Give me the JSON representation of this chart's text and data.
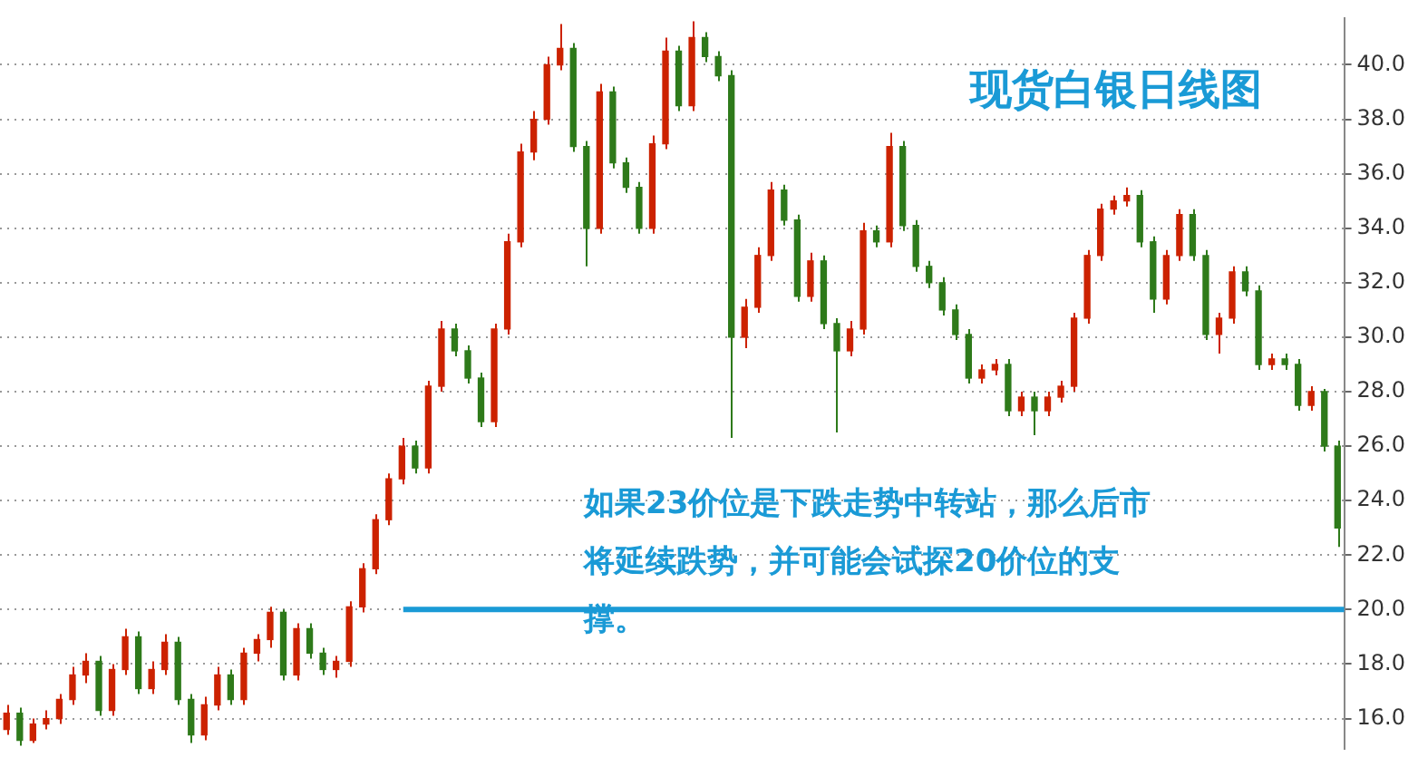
{
  "chart_data": {
    "type": "candlestick",
    "title": "现货白银日线图",
    "annotations": [
      "如果23价位是下跌走势中转站，那么后市将延续跌势，并可能会试探20价位的支撑。"
    ],
    "categories": [
      null,
      null,
      null,
      null,
      null,
      null,
      null,
      null,
      null,
      null,
      null,
      null,
      null,
      null,
      null,
      null,
      null,
      null,
      null,
      null,
      null,
      null,
      null,
      null,
      null,
      null,
      null,
      null,
      null,
      null,
      null,
      null,
      null,
      null,
      null,
      null,
      null,
      null,
      null,
      null,
      null,
      null,
      null,
      null,
      null,
      null,
      null,
      null,
      null,
      null,
      null,
      null,
      null,
      null,
      null,
      null,
      null,
      null,
      null,
      null,
      null,
      null,
      null,
      null,
      null,
      null,
      null,
      null,
      null,
      null,
      null,
      null,
      null,
      null,
      null,
      null,
      null,
      null,
      null,
      null,
      null,
      null,
      null,
      null,
      null,
      null,
      null,
      null,
      null,
      null,
      null,
      null,
      null,
      null,
      null,
      null,
      null,
      null,
      null,
      null,
      null,
      null
    ],
    "ohlc": [
      [
        15.6,
        16.5,
        15.4,
        16.2
      ],
      [
        16.2,
        16.4,
        15.0,
        15.2
      ],
      [
        15.2,
        16.0,
        15.1,
        15.8
      ],
      [
        15.8,
        16.3,
        15.6,
        16.0
      ],
      [
        16.0,
        16.9,
        15.8,
        16.7
      ],
      [
        16.7,
        17.9,
        16.5,
        17.6
      ],
      [
        17.6,
        18.4,
        17.3,
        18.1
      ],
      [
        18.1,
        18.3,
        16.1,
        16.3
      ],
      [
        16.3,
        18.0,
        16.1,
        17.8
      ],
      [
        17.8,
        19.3,
        17.6,
        19.0
      ],
      [
        19.0,
        19.2,
        16.9,
        17.1
      ],
      [
        17.1,
        18.1,
        16.9,
        17.8
      ],
      [
        17.8,
        19.1,
        17.6,
        18.8
      ],
      [
        18.8,
        19.0,
        16.5,
        16.7
      ],
      [
        16.7,
        16.9,
        15.1,
        15.4
      ],
      [
        15.4,
        16.8,
        15.2,
        16.5
      ],
      [
        16.5,
        17.9,
        16.3,
        17.6
      ],
      [
        17.6,
        17.8,
        16.5,
        16.7
      ],
      [
        16.7,
        18.6,
        16.5,
        18.4
      ],
      [
        18.4,
        19.1,
        18.1,
        18.9
      ],
      [
        18.9,
        20.1,
        18.6,
        19.9
      ],
      [
        19.9,
        20.0,
        17.4,
        17.6
      ],
      [
        17.6,
        19.5,
        17.4,
        19.3
      ],
      [
        19.3,
        19.5,
        18.2,
        18.4
      ],
      [
        18.4,
        18.6,
        17.6,
        17.8
      ],
      [
        17.8,
        18.3,
        17.5,
        18.1
      ],
      [
        18.1,
        20.3,
        17.9,
        20.1
      ],
      [
        20.1,
        21.7,
        19.9,
        21.5
      ],
      [
        21.5,
        23.5,
        21.3,
        23.3
      ],
      [
        23.3,
        25.0,
        23.1,
        24.8
      ],
      [
        24.8,
        26.3,
        24.6,
        26.0
      ],
      [
        26.0,
        26.2,
        25.0,
        25.2
      ],
      [
        25.2,
        28.4,
        25.0,
        28.2
      ],
      [
        28.2,
        30.6,
        28.0,
        30.3
      ],
      [
        30.3,
        30.5,
        29.3,
        29.5
      ],
      [
        29.5,
        29.7,
        28.3,
        28.5
      ],
      [
        28.5,
        28.7,
        26.7,
        26.9
      ],
      [
        26.9,
        30.5,
        26.7,
        30.3
      ],
      [
        30.3,
        33.8,
        30.1,
        33.5
      ],
      [
        33.5,
        37.1,
        33.3,
        36.8
      ],
      [
        36.8,
        38.3,
        36.5,
        38.0
      ],
      [
        38.0,
        40.3,
        37.8,
        40.0
      ],
      [
        40.0,
        41.5,
        39.8,
        40.6
      ],
      [
        40.6,
        40.8,
        36.8,
        37.0
      ],
      [
        37.0,
        37.2,
        32.6,
        34.0
      ],
      [
        34.0,
        39.3,
        33.8,
        39.0
      ],
      [
        39.0,
        39.2,
        36.2,
        36.4
      ],
      [
        36.4,
        36.6,
        35.3,
        35.5
      ],
      [
        35.5,
        35.7,
        33.8,
        34.0
      ],
      [
        34.0,
        37.4,
        33.8,
        37.1
      ],
      [
        37.1,
        41.0,
        36.9,
        40.5
      ],
      [
        40.5,
        40.7,
        38.3,
        38.5
      ],
      [
        38.5,
        41.6,
        38.3,
        41.0
      ],
      [
        41.0,
        41.2,
        40.1,
        40.3
      ],
      [
        40.3,
        40.5,
        39.4,
        39.6
      ],
      [
        39.6,
        39.8,
        26.3,
        30.0
      ],
      [
        30.0,
        31.4,
        29.6,
        31.1
      ],
      [
        31.1,
        33.3,
        30.9,
        33.0
      ],
      [
        33.0,
        35.7,
        32.8,
        35.4
      ],
      [
        35.4,
        35.6,
        34.1,
        34.3
      ],
      [
        34.3,
        34.5,
        31.3,
        31.5
      ],
      [
        31.5,
        33.1,
        31.3,
        32.8
      ],
      [
        32.8,
        33.0,
        30.3,
        30.5
      ],
      [
        30.5,
        30.7,
        26.5,
        29.5
      ],
      [
        29.5,
        30.6,
        29.3,
        30.3
      ],
      [
        30.3,
        34.2,
        30.1,
        33.9
      ],
      [
        33.9,
        34.1,
        33.3,
        33.5
      ],
      [
        33.5,
        37.5,
        33.3,
        37.0
      ],
      [
        37.0,
        37.2,
        33.9,
        34.1
      ],
      [
        34.1,
        34.3,
        32.4,
        32.6
      ],
      [
        32.6,
        32.8,
        31.8,
        32.0
      ],
      [
        32.0,
        32.2,
        30.8,
        31.0
      ],
      [
        31.0,
        31.2,
        29.9,
        30.1
      ],
      [
        30.1,
        30.3,
        28.3,
        28.5
      ],
      [
        28.5,
        29.0,
        28.3,
        28.8
      ],
      [
        28.8,
        29.2,
        28.6,
        29.0
      ],
      [
        29.0,
        29.2,
        27.1,
        27.3
      ],
      [
        27.3,
        28.0,
        27.1,
        27.8
      ],
      [
        27.8,
        28.0,
        26.4,
        27.3
      ],
      [
        27.3,
        28.0,
        27.1,
        27.8
      ],
      [
        27.8,
        28.4,
        27.6,
        28.2
      ],
      [
        28.2,
        30.9,
        28.0,
        30.7
      ],
      [
        30.7,
        33.2,
        30.5,
        33.0
      ],
      [
        33.0,
        34.9,
        32.8,
        34.7
      ],
      [
        34.7,
        35.2,
        34.5,
        35.0
      ],
      [
        35.0,
        35.5,
        34.8,
        35.2
      ],
      [
        35.2,
        35.4,
        33.3,
        33.5
      ],
      [
        33.5,
        33.7,
        30.9,
        31.4
      ],
      [
        31.4,
        33.2,
        31.2,
        33.0
      ],
      [
        33.0,
        34.7,
        32.8,
        34.5
      ],
      [
        34.5,
        34.7,
        32.8,
        33.0
      ],
      [
        33.0,
        33.2,
        29.9,
        30.1
      ],
      [
        30.1,
        30.9,
        29.4,
        30.7
      ],
      [
        30.7,
        32.6,
        30.5,
        32.4
      ],
      [
        32.4,
        32.6,
        31.5,
        31.7
      ],
      [
        31.7,
        31.9,
        28.8,
        29.0
      ],
      [
        29.0,
        29.4,
        28.8,
        29.2
      ],
      [
        29.2,
        29.4,
        28.8,
        29.0
      ],
      [
        29.0,
        29.2,
        27.3,
        27.5
      ],
      [
        27.5,
        28.2,
        27.3,
        28.0
      ],
      [
        28.0,
        28.1,
        25.8,
        26.0
      ],
      [
        26.0,
        26.2,
        22.3,
        23.0
      ]
    ],
    "ylim": [
      14.9,
      41.7
    ],
    "yticks": [
      {
        "value": 16,
        "label": "16.0"
      },
      {
        "value": 18,
        "label": "18.0"
      },
      {
        "value": 20,
        "label": "20.0"
      },
      {
        "value": 22,
        "label": "22.0"
      },
      {
        "value": 24,
        "label": "24.0"
      },
      {
        "value": 26,
        "label": "26.0"
      },
      {
        "value": 28,
        "label": "28.0"
      },
      {
        "value": 30,
        "label": "30.0"
      },
      {
        "value": 32,
        "label": "32.0"
      },
      {
        "value": 34,
        "label": "34.0"
      },
      {
        "value": 36,
        "label": "36.0"
      },
      {
        "value": 38,
        "label": "38.0"
      },
      {
        "value": 40,
        "label": "40.0"
      }
    ],
    "grid": "y",
    "legend": false,
    "tick_labels": "y",
    "ref_lines": [
      {
        "axis": "y",
        "value": 20,
        "color": "#1a9ad6"
      }
    ]
  }
}
